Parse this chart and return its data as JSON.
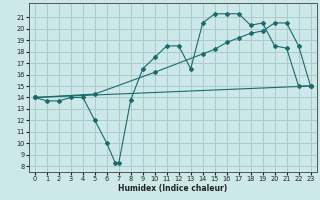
{
  "xlabel": "Humidex (Indice chaleur)",
  "bg_color": "#cce8e8",
  "grid_color": "#aacccc",
  "line_color": "#1a6b6b",
  "xlim": [
    -0.5,
    23.5
  ],
  "ylim": [
    7.5,
    22.2
  ],
  "yticks": [
    8,
    9,
    10,
    11,
    12,
    13,
    14,
    15,
    16,
    17,
    18,
    19,
    20,
    21
  ],
  "xticks": [
    0,
    1,
    2,
    3,
    4,
    5,
    6,
    7,
    8,
    9,
    10,
    11,
    12,
    13,
    14,
    15,
    16,
    17,
    18,
    19,
    20,
    21,
    22,
    23
  ],
  "curve1_x": [
    0,
    1,
    2,
    3,
    4,
    5,
    6,
    6.7,
    7,
    8,
    9,
    10,
    11,
    12,
    13,
    14,
    15,
    16,
    17,
    18,
    19,
    20,
    21,
    22,
    23
  ],
  "curve1_y": [
    14,
    13.7,
    13.7,
    14.0,
    14.0,
    12.0,
    10.0,
    8.3,
    8.3,
    13.8,
    16.5,
    17.5,
    18.5,
    18.5,
    16.5,
    20.5,
    21.3,
    21.3,
    21.3,
    20.3,
    20.5,
    18.5,
    18.3,
    15.0,
    15.0
  ],
  "curve2_x": [
    0,
    23
  ],
  "curve2_y": [
    14,
    15
  ],
  "curve3_x": [
    0,
    5,
    10,
    14,
    15,
    16,
    17,
    18,
    19,
    20,
    21,
    22,
    23
  ],
  "curve3_y": [
    14,
    14.3,
    16.2,
    17.8,
    18.2,
    18.8,
    19.2,
    19.6,
    19.8,
    20.5,
    20.5,
    18.5,
    15.0
  ]
}
